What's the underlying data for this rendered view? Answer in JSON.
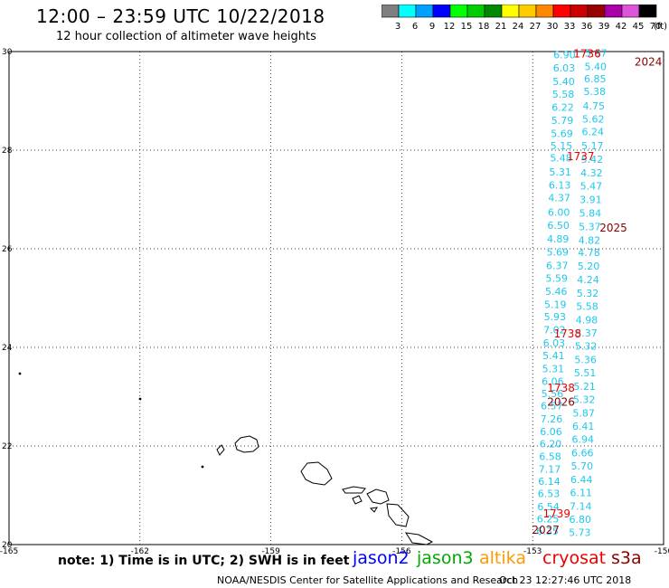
{
  "header": {
    "title": "12:00 – 23:59 UTC 10/22/2018",
    "subtitle": "12 hour collection of altimeter wave heights"
  },
  "colorbar": {
    "unit": "(ft)",
    "bins": [
      {
        "label": "3",
        "color": "#7f7f7f"
      },
      {
        "label": "6",
        "color": "#00ffff"
      },
      {
        "label": "9",
        "color": "#00a0ff"
      },
      {
        "label": "12",
        "color": "#0000ff"
      },
      {
        "label": "15",
        "color": "#00ff00"
      },
      {
        "label": "18",
        "color": "#00cc00"
      },
      {
        "label": "21",
        "color": "#008800"
      },
      {
        "label": "24",
        "color": "#ffff00"
      },
      {
        "label": "27",
        "color": "#ffcc00"
      },
      {
        "label": "30",
        "color": "#ff8800"
      },
      {
        "label": "33",
        "color": "#ff0000"
      },
      {
        "label": "36",
        "color": "#cc0000"
      },
      {
        "label": "39",
        "color": "#990000"
      },
      {
        "label": "42",
        "color": "#aa00aa"
      },
      {
        "label": "45",
        "color": "#dd55dd"
      },
      {
        "label": "70",
        "color": "#000000"
      }
    ]
  },
  "map": {
    "lon_range": [
      -165,
      -150
    ],
    "lat_range": [
      20,
      30
    ],
    "lon_ticks": [
      "-165",
      "-162",
      "-159",
      "-156",
      "-153",
      "-150"
    ],
    "lat_ticks": [
      "30",
      "28",
      "26",
      "24",
      "22",
      "20"
    ],
    "gridlines": "dotted",
    "wave_color": "#1ec8ee",
    "track_a": [
      {
        "lat": 29.86,
        "lon": -152.27,
        "v": "6.90"
      },
      {
        "lat": 29.6,
        "lon": -152.28,
        "v": "6.03"
      },
      {
        "lat": 29.32,
        "lon": -152.29,
        "v": "5.40"
      },
      {
        "lat": 29.06,
        "lon": -152.3,
        "v": "5.58"
      },
      {
        "lat": 28.8,
        "lon": -152.31,
        "v": "6.22"
      },
      {
        "lat": 28.53,
        "lon": -152.32,
        "v": "5.79"
      },
      {
        "lat": 28.27,
        "lon": -152.33,
        "v": "5.69"
      },
      {
        "lat": 28.02,
        "lon": -152.34,
        "v": "5.15"
      },
      {
        "lat": 27.77,
        "lon": -152.35,
        "v": "5.48"
      },
      {
        "lat": 27.49,
        "lon": -152.37,
        "v": "5.31"
      },
      {
        "lat": 27.22,
        "lon": -152.38,
        "v": "6.13"
      },
      {
        "lat": 26.96,
        "lon": -152.39,
        "v": "4.37"
      },
      {
        "lat": 26.67,
        "lon": -152.4,
        "v": "6.00"
      },
      {
        "lat": 26.4,
        "lon": -152.41,
        "v": "6.50"
      },
      {
        "lat": 26.13,
        "lon": -152.42,
        "v": "4.89"
      },
      {
        "lat": 25.86,
        "lon": -152.43,
        "v": "5.69"
      },
      {
        "lat": 25.59,
        "lon": -152.44,
        "v": "6.37"
      },
      {
        "lat": 25.33,
        "lon": -152.45,
        "v": "5.59"
      },
      {
        "lat": 25.06,
        "lon": -152.46,
        "v": "5.46"
      },
      {
        "lat": 24.8,
        "lon": -152.48,
        "v": "5.19"
      },
      {
        "lat": 24.55,
        "lon": -152.49,
        "v": "5.93"
      },
      {
        "lat": 24.28,
        "lon": -152.5,
        "v": "7.02"
      },
      {
        "lat": 24.02,
        "lon": -152.51,
        "v": "6.03"
      },
      {
        "lat": 23.76,
        "lon": -152.52,
        "v": "5.41"
      },
      {
        "lat": 23.5,
        "lon": -152.53,
        "v": "5.31"
      },
      {
        "lat": 23.24,
        "lon": -152.54,
        "v": "6.06"
      },
      {
        "lat": 22.99,
        "lon": -152.55,
        "v": "5.56"
      },
      {
        "lat": 22.74,
        "lon": -152.56,
        "v": "6.57"
      },
      {
        "lat": 22.48,
        "lon": -152.57,
        "v": "7.26"
      },
      {
        "lat": 22.22,
        "lon": -152.58,
        "v": "6.06"
      },
      {
        "lat": 21.97,
        "lon": -152.59,
        "v": "6.20"
      },
      {
        "lat": 21.72,
        "lon": -152.6,
        "v": "6.58"
      },
      {
        "lat": 21.46,
        "lon": -152.61,
        "v": "7.17"
      },
      {
        "lat": 21.21,
        "lon": -152.62,
        "v": "6.14"
      },
      {
        "lat": 20.96,
        "lon": -152.63,
        "v": "6.53"
      },
      {
        "lat": 20.7,
        "lon": -152.64,
        "v": "6.54"
      },
      {
        "lat": 20.45,
        "lon": -152.65,
        "v": "6.25"
      },
      {
        "lat": 20.2,
        "lon": -152.66,
        "v": "6.35"
      }
    ],
    "track_b": [
      {
        "lat": 29.9,
        "lon": -151.55,
        "v": "5.97"
      },
      {
        "lat": 29.62,
        "lon": -151.56,
        "v": "5.40"
      },
      {
        "lat": 29.38,
        "lon": -151.57,
        "v": "6.85"
      },
      {
        "lat": 29.12,
        "lon": -151.58,
        "v": "5.38"
      },
      {
        "lat": 28.83,
        "lon": -151.6,
        "v": "4.75"
      },
      {
        "lat": 28.56,
        "lon": -151.61,
        "v": "5.62"
      },
      {
        "lat": 28.3,
        "lon": -151.62,
        "v": "6.24"
      },
      {
        "lat": 28.02,
        "lon": -151.63,
        "v": "5.17"
      },
      {
        "lat": 27.74,
        "lon": -151.64,
        "v": "5.42"
      },
      {
        "lat": 27.47,
        "lon": -151.65,
        "v": "4.32"
      },
      {
        "lat": 27.2,
        "lon": -151.66,
        "v": "5.47"
      },
      {
        "lat": 26.93,
        "lon": -151.67,
        "v": "3.91"
      },
      {
        "lat": 26.65,
        "lon": -151.68,
        "v": "5.84"
      },
      {
        "lat": 26.38,
        "lon": -151.69,
        "v": "5.37"
      },
      {
        "lat": 26.1,
        "lon": -151.7,
        "v": "4.82"
      },
      {
        "lat": 25.85,
        "lon": -151.71,
        "v": "4.78"
      },
      {
        "lat": 25.58,
        "lon": -151.72,
        "v": "5.20"
      },
      {
        "lat": 25.3,
        "lon": -151.73,
        "v": "4.24"
      },
      {
        "lat": 25.03,
        "lon": -151.74,
        "v": "5.32"
      },
      {
        "lat": 24.76,
        "lon": -151.75,
        "v": "5.58"
      },
      {
        "lat": 24.49,
        "lon": -151.76,
        "v": "4.98"
      },
      {
        "lat": 24.22,
        "lon": -151.77,
        "v": "5.37"
      },
      {
        "lat": 23.95,
        "lon": -151.78,
        "v": "5.32"
      },
      {
        "lat": 23.68,
        "lon": -151.79,
        "v": "5.36"
      },
      {
        "lat": 23.41,
        "lon": -151.8,
        "v": "5.51"
      },
      {
        "lat": 23.14,
        "lon": -151.81,
        "v": "5.21"
      },
      {
        "lat": 22.87,
        "lon": -151.82,
        "v": "5.32"
      },
      {
        "lat": 22.6,
        "lon": -151.83,
        "v": "5.87"
      },
      {
        "lat": 22.33,
        "lon": -151.84,
        "v": "6.41"
      },
      {
        "lat": 22.06,
        "lon": -151.85,
        "v": "6.94"
      },
      {
        "lat": 21.79,
        "lon": -151.86,
        "v": "6.66"
      },
      {
        "lat": 21.52,
        "lon": -151.87,
        "v": "5.70"
      },
      {
        "lat": 21.25,
        "lon": -151.88,
        "v": "6.44"
      },
      {
        "lat": 20.98,
        "lon": -151.89,
        "v": "6.11"
      },
      {
        "lat": 20.71,
        "lon": -151.9,
        "v": "7.14"
      },
      {
        "lat": 20.44,
        "lon": -151.91,
        "v": "6.80"
      },
      {
        "lat": 20.17,
        "lon": -151.92,
        "v": "5.73"
      }
    ],
    "time_labels": [
      {
        "lat": 29.88,
        "lon": -151.75,
        "text": "1736",
        "color": "#ee0000"
      },
      {
        "lat": 29.72,
        "lon": -150.35,
        "text": "2024",
        "color": "#8b0000"
      },
      {
        "lat": 27.8,
        "lon": -151.9,
        "text": "1737",
        "color": "#ee0000"
      },
      {
        "lat": 26.35,
        "lon": -151.15,
        "text": "2025",
        "color": "#8b0000"
      },
      {
        "lat": 24.2,
        "lon": -152.2,
        "text": "1738",
        "color": "#ee0000"
      },
      {
        "lat": 23.1,
        "lon": -152.35,
        "text": "1738",
        "color": "#ee0000"
      },
      {
        "lat": 22.82,
        "lon": -152.35,
        "text": "2026",
        "color": "#8b0000"
      },
      {
        "lat": 20.55,
        "lon": -152.45,
        "text": "1739",
        "color": "#ee0000"
      },
      {
        "lat": 20.22,
        "lon": -152.7,
        "text": "2027",
        "color": "#8b0000"
      }
    ]
  },
  "note": "note: 1) Time is in UTC; 2) SWH is in feet",
  "legend": [
    {
      "label": "jason2",
      "color": "#0000ff"
    },
    {
      "label": "jason3",
      "color": "#00aa00"
    },
    {
      "label": "altika",
      "color": "#ff9900"
    },
    {
      "label": "cryosat",
      "color": "#ee0000"
    },
    {
      "label": "s3a",
      "color": "#8b0000"
    }
  ],
  "footer": {
    "left": "NOAA/NESDIS Center for Satellite Applications and Research",
    "right": "Oct 23 12:27:46 UTC 2018"
  }
}
